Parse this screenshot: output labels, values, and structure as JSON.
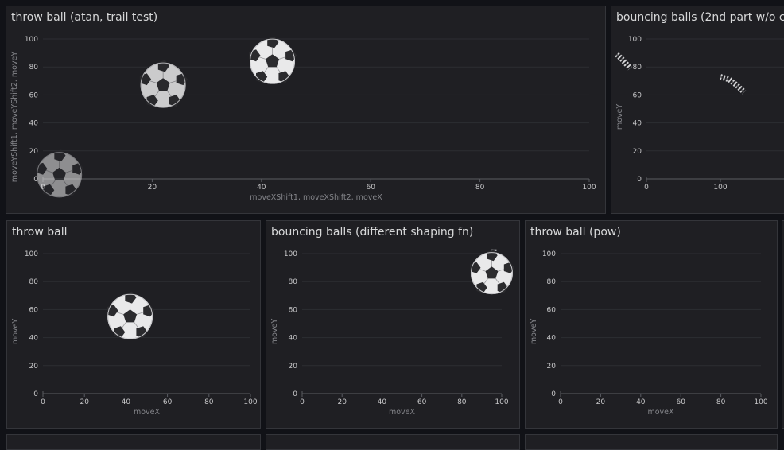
{
  "colors": {
    "background": "#111217",
    "panel": "#1f1f23",
    "grid": "#2d2e33",
    "text": "#d8d9da",
    "axis_label": "#85868b"
  },
  "ball_icon": "soccer-ball",
  "panels": [
    {
      "title": "throw ball (atan, trail test)"
    },
    {
      "title": "bouncing balls (2nd part w/o c"
    },
    {
      "title": "throw ball"
    },
    {
      "title": "bouncing balls (different shaping fn)"
    },
    {
      "title": "throw ball (pow)"
    }
  ],
  "chart_data": [
    {
      "type": "scatter",
      "title": "throw ball (atan, trail test)",
      "xlabel": "moveXShift1, moveXShift2, moveX",
      "ylabel": "moveYShift1, moveYShift2, moveY",
      "xlim": [
        0,
        100
      ],
      "ylim": [
        0,
        100
      ],
      "xticks": [
        0,
        20,
        40,
        60,
        80,
        100
      ],
      "yticks": [
        0,
        20,
        40,
        60,
        80,
        100
      ],
      "grid": true,
      "series": [
        {
          "points": [
            [
              3,
              3
            ]
          ],
          "opacity": 0.55
        },
        {
          "points": [
            [
              22,
              67
            ]
          ],
          "opacity": 0.85
        },
        {
          "points": [
            [
              42,
              84
            ]
          ],
          "opacity": 1
        }
      ]
    },
    {
      "type": "scatter",
      "title": "bouncing balls (2nd part w/o c",
      "xlabel": "",
      "ylabel": "moveY",
      "xlim": [
        0,
        200
      ],
      "ylim": [
        0,
        100
      ],
      "xticks": [
        0,
        100
      ],
      "yticks": [
        0,
        20,
        40,
        60,
        80,
        100
      ],
      "grid": true,
      "trails": [
        [
          [
            -40,
            89
          ],
          [
            -32,
            85
          ],
          [
            -22,
            79
          ]
        ],
        [
          [
            100,
            73
          ],
          [
            112,
            71
          ],
          [
            122,
            67
          ],
          [
            132,
            62
          ]
        ]
      ]
    },
    {
      "type": "scatter",
      "title": "throw ball",
      "xlabel": "moveX",
      "ylabel": "moveY",
      "xlim": [
        0,
        100
      ],
      "ylim": [
        0,
        100
      ],
      "xticks": [
        0,
        20,
        40,
        60,
        80,
        100
      ],
      "yticks": [
        0,
        20,
        40,
        60,
        80,
        100
      ],
      "grid": true,
      "series": [
        {
          "points": [
            [
              42,
              55
            ]
          ],
          "opacity": 1
        }
      ]
    },
    {
      "type": "scatter",
      "title": "bouncing balls (different shaping fn)",
      "xlabel": "moveX",
      "ylabel": "moveY",
      "xlim": [
        0,
        100
      ],
      "ylim": [
        0,
        100
      ],
      "xticks": [
        0,
        20,
        40,
        60,
        80,
        100
      ],
      "yticks": [
        0,
        20,
        40,
        60,
        80,
        100
      ],
      "grid": true,
      "series": [
        {
          "points": [
            [
              95,
              86
            ]
          ],
          "opacity": 1
        }
      ],
      "trails": [
        [
          [
            96,
            103
          ],
          [
            96,
            100
          ],
          [
            96,
            97
          ]
        ]
      ]
    },
    {
      "type": "scatter",
      "title": "throw ball (pow)",
      "xlabel": "moveX",
      "ylabel": "moveY",
      "xlim": [
        0,
        100
      ],
      "ylim": [
        0,
        100
      ],
      "xticks": [
        0,
        20,
        40,
        60,
        80,
        100
      ],
      "yticks": [
        0,
        20,
        40,
        60,
        80,
        100
      ],
      "grid": true,
      "series": []
    }
  ]
}
